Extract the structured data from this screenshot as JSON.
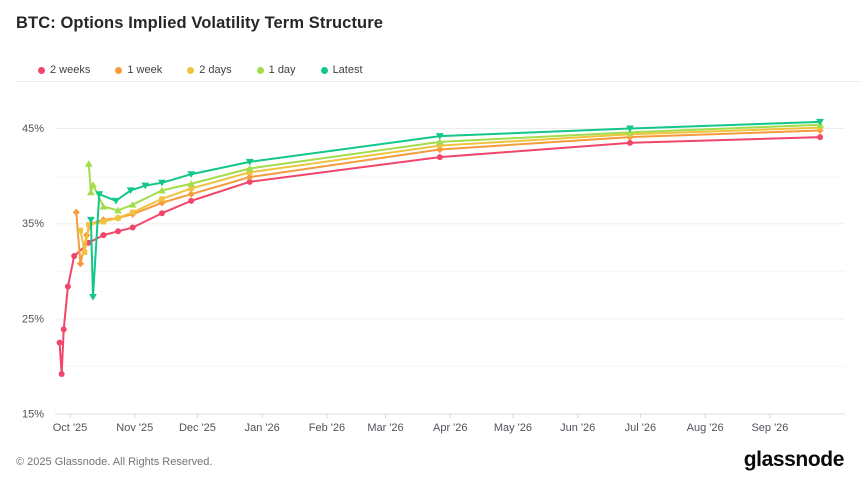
{
  "header": {
    "title": "BTC: Options Implied Volatility Term Structure"
  },
  "footer": {
    "copyright": "© 2025 Glassnode. All Rights Reserved.",
    "logo_text": "glassnode"
  },
  "chart_data": {
    "type": "line",
    "title": "BTC: Options Implied Volatility Term Structure",
    "xlabel": "",
    "ylabel": "",
    "ylim": [
      15,
      48
    ],
    "grid": true,
    "legend_position": "top-left",
    "y_ticks": [
      {
        "value": 15,
        "label": "15%"
      },
      {
        "value": 25,
        "label": "25%"
      },
      {
        "value": 35,
        "label": "35%"
      },
      {
        "value": 45,
        "label": "45%"
      }
    ],
    "y_minor_gridlines": [
      20,
      30,
      40
    ],
    "x_range": [
      "2025-09-24",
      "2026-10-08"
    ],
    "x_ticks": [
      {
        "date": "2025-10-01",
        "label": "Oct '25"
      },
      {
        "date": "2025-11-01",
        "label": "Nov '25"
      },
      {
        "date": "2025-12-01",
        "label": "Dec '25"
      },
      {
        "date": "2026-01-01",
        "label": "Jan '26"
      },
      {
        "date": "2026-02-01",
        "label": "Feb '26"
      },
      {
        "date": "2026-03-01",
        "label": "Mar '26"
      },
      {
        "date": "2026-04-01",
        "label": "Apr '26"
      },
      {
        "date": "2026-05-01",
        "label": "May '26"
      },
      {
        "date": "2026-06-01",
        "label": "Jun '26"
      },
      {
        "date": "2026-07-01",
        "label": "Jul '26"
      },
      {
        "date": "2026-08-01",
        "label": "Aug '26"
      },
      {
        "date": "2026-09-01",
        "label": "Sep '26"
      }
    ],
    "series": [
      {
        "name": "2 weeks",
        "color": "#f2456a",
        "marker": "circle",
        "points": [
          [
            "2025-09-26",
            22.5
          ],
          [
            "2025-09-27",
            19.2
          ],
          [
            "2025-09-28",
            23.9
          ],
          [
            "2025-09-30",
            28.4
          ],
          [
            "2025-10-03",
            31.6
          ],
          [
            "2025-10-10",
            33.0
          ],
          [
            "2025-10-17",
            33.8
          ],
          [
            "2025-10-24",
            34.2
          ],
          [
            "2025-10-31",
            34.6
          ],
          [
            "2025-11-14",
            36.1
          ],
          [
            "2025-11-28",
            37.4
          ],
          [
            "2025-12-26",
            39.4
          ],
          [
            "2026-03-27",
            42.0
          ],
          [
            "2026-06-26",
            43.5
          ],
          [
            "2026-09-25",
            44.1
          ]
        ]
      },
      {
        "name": "1 week",
        "color": "#f59b3d",
        "marker": "diamond",
        "points": [
          [
            "2025-10-04",
            36.2
          ],
          [
            "2025-10-06",
            30.8
          ],
          [
            "2025-10-09",
            33.8
          ],
          [
            "2025-10-11",
            35.0
          ],
          [
            "2025-10-17",
            35.4
          ],
          [
            "2025-10-24",
            35.6
          ],
          [
            "2025-10-31",
            36.0
          ],
          [
            "2025-11-14",
            37.2
          ],
          [
            "2025-11-28",
            38.1
          ],
          [
            "2025-12-26",
            39.9
          ],
          [
            "2026-03-27",
            42.8
          ],
          [
            "2026-06-26",
            44.1
          ],
          [
            "2026-09-25",
            44.8
          ]
        ]
      },
      {
        "name": "2 days",
        "color": "#f0c33f",
        "marker": "square",
        "points": [
          [
            "2025-10-06",
            34.3
          ],
          [
            "2025-10-08",
            32.0
          ],
          [
            "2025-10-10",
            34.9
          ],
          [
            "2025-10-17",
            35.2
          ],
          [
            "2025-10-24",
            35.6
          ],
          [
            "2025-10-31",
            36.2
          ],
          [
            "2025-11-14",
            37.6
          ],
          [
            "2025-11-28",
            38.7
          ],
          [
            "2025-12-26",
            40.4
          ],
          [
            "2026-03-27",
            43.2
          ],
          [
            "2026-06-26",
            44.4
          ],
          [
            "2026-09-25",
            45.1
          ]
        ]
      },
      {
        "name": "1 day",
        "color": "#a3dd4c",
        "marker": "triangle",
        "points": [
          [
            "2025-10-10",
            41.3
          ],
          [
            "2025-10-11",
            38.3
          ],
          [
            "2025-10-12",
            39.1
          ],
          [
            "2025-10-17",
            36.8
          ],
          [
            "2025-10-24",
            36.4
          ],
          [
            "2025-10-31",
            37.0
          ],
          [
            "2025-11-14",
            38.5
          ],
          [
            "2025-11-28",
            39.2
          ],
          [
            "2025-12-26",
            40.8
          ],
          [
            "2026-03-27",
            43.6
          ],
          [
            "2026-06-26",
            44.6
          ],
          [
            "2026-09-25",
            45.4
          ]
        ]
      },
      {
        "name": "Latest",
        "color": "#13c689",
        "marker": "triangle-down",
        "points": [
          [
            "2025-10-11",
            35.4
          ],
          [
            "2025-10-12",
            27.3
          ],
          [
            "2025-10-15",
            38.1
          ],
          [
            "2025-10-23",
            37.4
          ],
          [
            "2025-10-30",
            38.5
          ],
          [
            "2025-11-06",
            39.0
          ],
          [
            "2025-11-14",
            39.3
          ],
          [
            "2025-11-28",
            40.2
          ],
          [
            "2025-12-26",
            41.5
          ],
          [
            "2026-03-27",
            44.2
          ],
          [
            "2026-06-26",
            45.0
          ],
          [
            "2026-09-25",
            45.7
          ]
        ]
      }
    ]
  }
}
